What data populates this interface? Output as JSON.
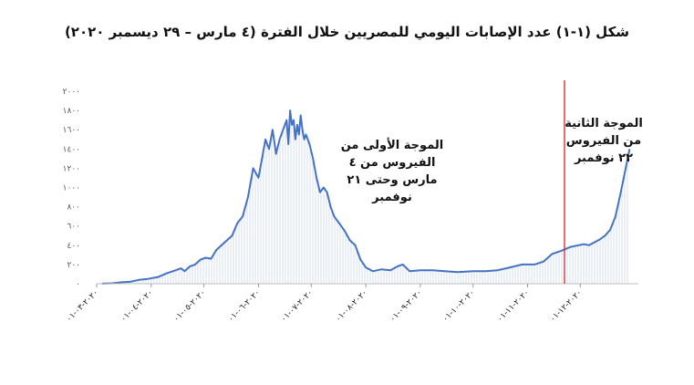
{
  "chart_data": {
    "type": "area",
    "title": "شكل (١-١) عدد الإصابات اليومي للمصريين خلال الفترة (٤ مارس – ٢٩ ديسمبر ٢٠٢٠)",
    "xlabel": "",
    "ylabel": "",
    "ylim": [
      0,
      2000
    ],
    "y_ticks": [
      0,
      200,
      400,
      600,
      800,
      1000,
      1200,
      1400,
      1600,
      1800,
      2000
    ],
    "y_tick_labels": [
      "٠",
      "٢٠٠",
      "٤٠٠",
      "٦٠٠",
      "٨٠٠",
      "١٠٠٠",
      "١٢٠٠",
      "١٤٠٠",
      "١٦٠٠",
      "١٨٠٠",
      "٢٠٠٠"
    ],
    "x_range": [
      "2020-03-04",
      "2020-12-29"
    ],
    "x_ticks": [
      "2020-03-01",
      "2020-04-01",
      "2020-05-01",
      "2020-06-01",
      "2020-07-01",
      "2020-08-01",
      "2020-09-01",
      "2020-10-01",
      "2020-11-01",
      "2020-12-01"
    ],
    "x_tick_labels": [
      "٢٠٢٠-٠٣-٠١",
      "٢٠٢٠-٠٤-٠١",
      "٢٠٢٠-٠٥-٠١",
      "٢٠٢٠-٠٦-٠١",
      "٢٠٢٠-٠٧-٠١",
      "٢٠٢٠-٠٨-٠١",
      "٢٠٢٠-٠٩-٠١",
      "٢٠٢٠-١٠-٠١",
      "٢٠٢٠-١١-٠١",
      "٢٠٢٠-١٢-٠١"
    ],
    "grid": false,
    "legend": "none",
    "series": [
      {
        "color": "#4472c4",
        "points": [
          [
            "2020-03-04",
            1
          ],
          [
            "2020-03-10",
            5
          ],
          [
            "2020-03-15",
            15
          ],
          [
            "2020-03-20",
            20
          ],
          [
            "2020-03-25",
            40
          ],
          [
            "2020-03-30",
            50
          ],
          [
            "2020-04-05",
            70
          ],
          [
            "2020-04-10",
            110
          ],
          [
            "2020-04-15",
            140
          ],
          [
            "2020-04-18",
            160
          ],
          [
            "2020-04-20",
            130
          ],
          [
            "2020-04-23",
            180
          ],
          [
            "2020-04-26",
            200
          ],
          [
            "2020-04-29",
            250
          ],
          [
            "2020-05-02",
            270
          ],
          [
            "2020-05-05",
            260
          ],
          [
            "2020-05-08",
            350
          ],
          [
            "2020-05-11",
            400
          ],
          [
            "2020-05-14",
            450
          ],
          [
            "2020-05-17",
            500
          ],
          [
            "2020-05-20",
            630
          ],
          [
            "2020-05-23",
            700
          ],
          [
            "2020-05-26",
            900
          ],
          [
            "2020-05-29",
            1200
          ],
          [
            "2020-06-01",
            1100
          ],
          [
            "2020-06-03",
            1300
          ],
          [
            "2020-06-05",
            1500
          ],
          [
            "2020-06-07",
            1400
          ],
          [
            "2020-06-09",
            1600
          ],
          [
            "2020-06-11",
            1350
          ],
          [
            "2020-06-13",
            1500
          ],
          [
            "2020-06-15",
            1600
          ],
          [
            "2020-06-17",
            1700
          ],
          [
            "2020-06-18",
            1450
          ],
          [
            "2020-06-19",
            1800
          ],
          [
            "2020-06-20",
            1650
          ],
          [
            "2020-06-21",
            1700
          ],
          [
            "2020-06-22",
            1500
          ],
          [
            "2020-06-23",
            1650
          ],
          [
            "2020-06-24",
            1550
          ],
          [
            "2020-06-25",
            1750
          ],
          [
            "2020-06-26",
            1600
          ],
          [
            "2020-06-27",
            1500
          ],
          [
            "2020-06-28",
            1550
          ],
          [
            "2020-06-30",
            1450
          ],
          [
            "2020-07-02",
            1300
          ],
          [
            "2020-07-04",
            1100
          ],
          [
            "2020-07-06",
            950
          ],
          [
            "2020-07-08",
            1000
          ],
          [
            "2020-07-10",
            950
          ],
          [
            "2020-07-12",
            800
          ],
          [
            "2020-07-14",
            700
          ],
          [
            "2020-07-16",
            650
          ],
          [
            "2020-07-18",
            600
          ],
          [
            "2020-07-20",
            550
          ],
          [
            "2020-07-23",
            450
          ],
          [
            "2020-07-26",
            400
          ],
          [
            "2020-07-29",
            250
          ],
          [
            "2020-08-01",
            170
          ],
          [
            "2020-08-05",
            130
          ],
          [
            "2020-08-10",
            150
          ],
          [
            "2020-08-15",
            140
          ],
          [
            "2020-08-19",
            180
          ],
          [
            "2020-08-22",
            200
          ],
          [
            "2020-08-26",
            130
          ],
          [
            "2020-09-01",
            140
          ],
          [
            "2020-09-08",
            140
          ],
          [
            "2020-09-15",
            130
          ],
          [
            "2020-09-22",
            120
          ],
          [
            "2020-10-01",
            130
          ],
          [
            "2020-10-08",
            130
          ],
          [
            "2020-10-15",
            140
          ],
          [
            "2020-10-22",
            170
          ],
          [
            "2020-10-29",
            200
          ],
          [
            "2020-11-05",
            200
          ],
          [
            "2020-11-10",
            230
          ],
          [
            "2020-11-15",
            310
          ],
          [
            "2020-11-20",
            340
          ],
          [
            "2020-11-25",
            380
          ],
          [
            "2020-11-30",
            400
          ],
          [
            "2020-12-03",
            410
          ],
          [
            "2020-12-06",
            400
          ],
          [
            "2020-12-09",
            430
          ],
          [
            "2020-12-12",
            460
          ],
          [
            "2020-12-15",
            500
          ],
          [
            "2020-12-18",
            560
          ],
          [
            "2020-12-21",
            700
          ],
          [
            "2020-12-24",
            950
          ],
          [
            "2020-12-27",
            1220
          ],
          [
            "2020-12-29",
            1400
          ]
        ]
      }
    ],
    "markers": [
      {
        "x": "2020-11-22",
        "color": "#e02020"
      }
    ],
    "annotations": [
      {
        "id": "first-wave",
        "lines": [
          "الموجة الأولى من",
          "الفيروس من ٤",
          "مارس وحتى ٢١",
          "نوفمبر"
        ]
      },
      {
        "id": "second-wave",
        "lines": [
          "الموجة الثانية",
          "من الفيروس",
          "٢٢ نوفمبر"
        ]
      }
    ]
  }
}
